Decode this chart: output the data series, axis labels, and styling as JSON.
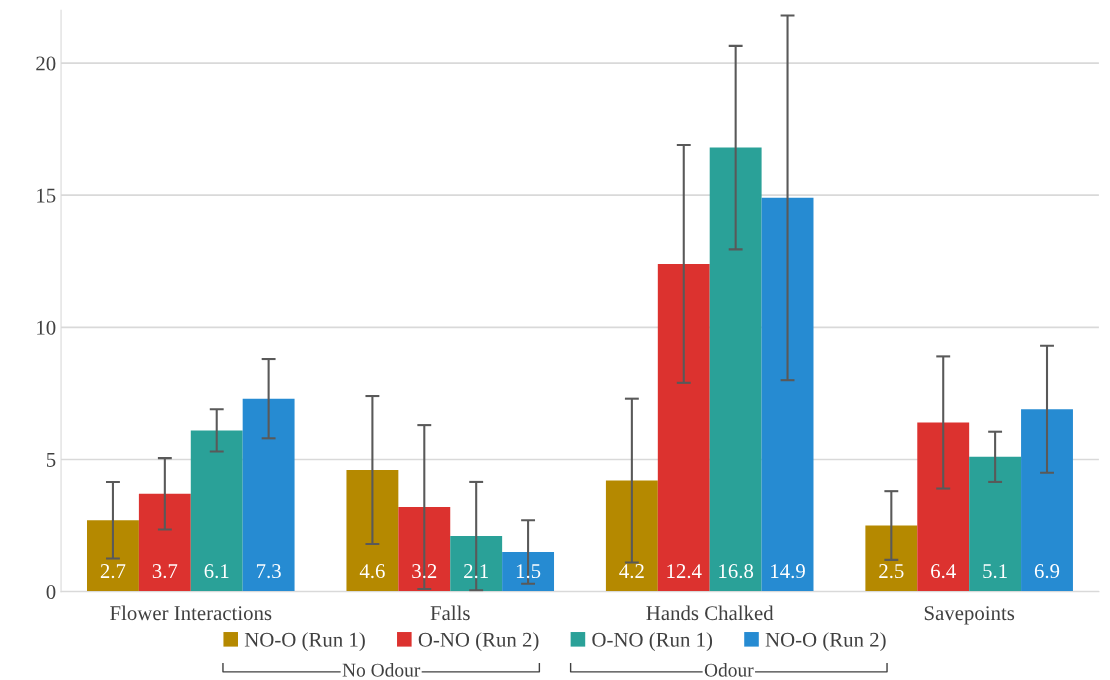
{
  "chart_data": {
    "type": "bar",
    "categories": [
      "Flower Interactions",
      "Falls",
      "Hands Chalked",
      "Savepoints"
    ],
    "series": [
      {
        "name": "NO-O (Run 1)",
        "color": "#b58900",
        "values": [
          2.7,
          4.6,
          4.2,
          2.5
        ],
        "errors": [
          1.45,
          2.8,
          3.1,
          1.3
        ]
      },
      {
        "name": "O-NO (Run 2)",
        "color": "#dc322f",
        "values": [
          3.7,
          3.2,
          12.4,
          6.4
        ],
        "errors": [
          1.35,
          3.1,
          4.5,
          2.5
        ]
      },
      {
        "name": "O-NO (Run 1)",
        "color": "#2aa198",
        "values": [
          6.1,
          2.1,
          16.8,
          5.1
        ],
        "errors": [
          0.8,
          2.05,
          3.85,
          0.95
        ]
      },
      {
        "name": "NO-O (Run 2)",
        "color": "#268bd2",
        "values": [
          7.3,
          1.5,
          14.9,
          6.9
        ],
        "errors": [
          1.5,
          1.2,
          6.9,
          2.4
        ]
      }
    ],
    "ylim": [
      0,
      22
    ],
    "yticks": [
      0,
      5,
      10,
      15,
      20
    ],
    "grid": "y",
    "legend": "bottom",
    "data_labels": true,
    "annotations": [
      "No Odour",
      "Odour"
    ]
  }
}
